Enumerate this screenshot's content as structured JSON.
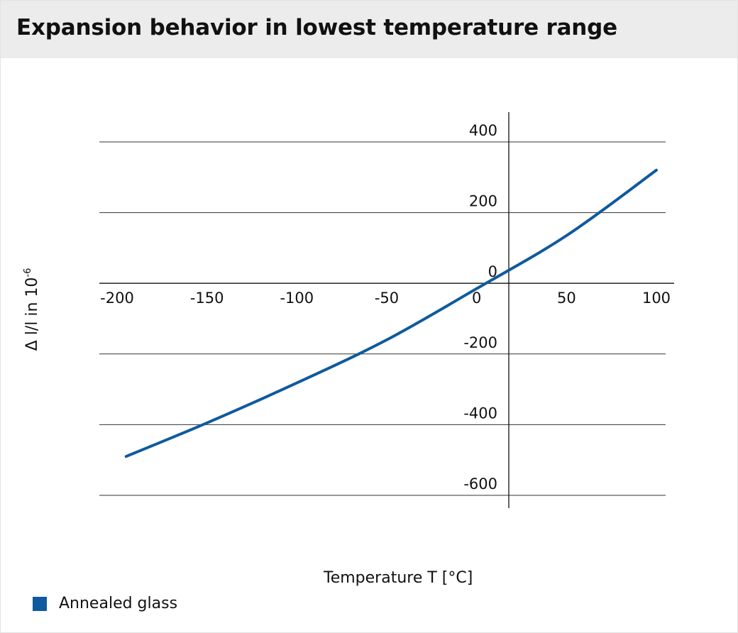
{
  "header": {
    "title": "Expansion behavior in lowest temperature range"
  },
  "chart_data": {
    "type": "line",
    "title": "Expansion behavior in lowest temperature range",
    "xlabel": "Temperature T [°C]",
    "ylabel_prefix": "Δ l/l in 10",
    "ylabel_exponent": "-6",
    "xlim": [
      -200,
      100
    ],
    "ylim": [
      -600,
      400
    ],
    "x_ticks": [
      "-200",
      "-150",
      "-100",
      "-50",
      "0",
      "50",
      "100"
    ],
    "y_ticks": [
      "400",
      "200",
      "0",
      "-200",
      "-400",
      "-600"
    ],
    "grid": {
      "horizontal": true,
      "vertical": false
    },
    "legend_position": "bottom-left",
    "series": [
      {
        "name": "Annealed glass",
        "color": "#0f5a9e",
        "x": [
          -195,
          -150,
          -100,
          -50,
          0,
          50,
          100
        ],
        "y": [
          -490,
          -395,
          -282,
          -160,
          -15,
          135,
          320
        ]
      }
    ]
  }
}
